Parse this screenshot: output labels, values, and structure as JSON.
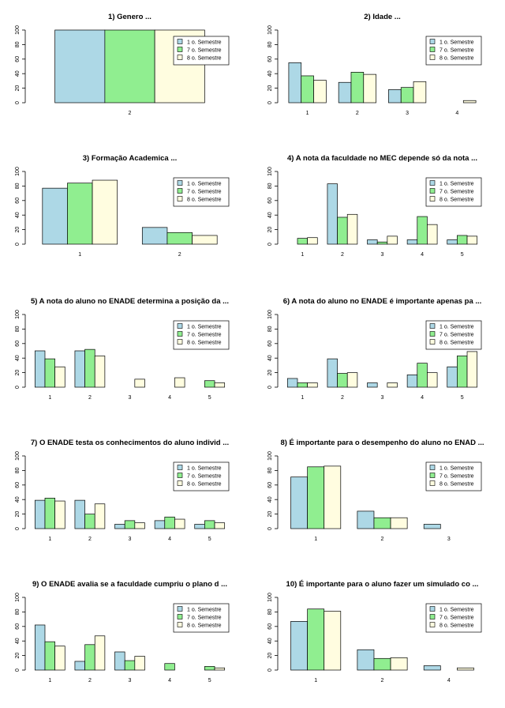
{
  "colors": [
    "#add8e6",
    "#90ee90",
    "#fffde0"
  ],
  "legend_labels": [
    "1 o. Semestre",
    "7 o. Semestre",
    "8 o. Semestre"
  ],
  "chart_data": [
    {
      "type": "bar",
      "title": "1) Genero ...",
      "categories": [
        "2"
      ],
      "ylim": [
        0,
        100
      ],
      "yticks": [
        0,
        20,
        40,
        60,
        80,
        100
      ],
      "series": [
        {
          "name": "1 o. Semestre",
          "values": [
            100
          ]
        },
        {
          "name": "7 o. Semestre",
          "values": [
            100
          ]
        },
        {
          "name": "8 o. Semestre",
          "values": [
            100
          ]
        }
      ],
      "legend": "top-right",
      "grid": false
    },
    {
      "type": "bar",
      "title": "2) Idade ...",
      "categories": [
        "1",
        "2",
        "3",
        "4"
      ],
      "ylim": [
        0,
        100
      ],
      "yticks": [
        0,
        20,
        40,
        60,
        80,
        100
      ],
      "series": [
        {
          "name": "1 o. Semestre",
          "values": [
            55,
            28,
            18,
            0
          ]
        },
        {
          "name": "7 o. Semestre",
          "values": [
            37,
            42,
            21,
            0
          ]
        },
        {
          "name": "8 o. Semestre",
          "values": [
            31,
            39,
            29,
            3
          ]
        }
      ],
      "legend": "top-right",
      "grid": false
    },
    {
      "type": "bar",
      "title": "3) Formação Academica ...",
      "categories": [
        "1",
        "2"
      ],
      "ylim": [
        0,
        100
      ],
      "yticks": [
        0,
        20,
        40,
        60,
        80,
        100
      ],
      "series": [
        {
          "name": "1 o. Semestre",
          "values": [
            77,
            23
          ]
        },
        {
          "name": "7 o. Semestre",
          "values": [
            84,
            16
          ]
        },
        {
          "name": "8 o. Semestre",
          "values": [
            88,
            12
          ]
        }
      ],
      "legend": "top-right",
      "grid": false
    },
    {
      "type": "bar",
      "title": "4) A nota da faculdade no MEC depende  só da nota  ...",
      "categories": [
        "1",
        "2",
        "3",
        "4",
        "5"
      ],
      "ylim": [
        0,
        100
      ],
      "yticks": [
        0,
        20,
        40,
        60,
        80,
        100
      ],
      "series": [
        {
          "name": "1 o. Semestre",
          "values": [
            0,
            83,
            6,
            6,
            6
          ]
        },
        {
          "name": "7 o. Semestre",
          "values": [
            8,
            37,
            3,
            38,
            12
          ]
        },
        {
          "name": "8 o. Semestre",
          "values": [
            9,
            41,
            11,
            27,
            11
          ]
        }
      ],
      "legend": "top-right",
      "grid": false
    },
    {
      "type": "bar",
      "title": "5) A nota do aluno no ENADE determina a posição da ...",
      "categories": [
        "1",
        "2",
        "3",
        "4",
        "5"
      ],
      "ylim": [
        0,
        100
      ],
      "yticks": [
        0,
        20,
        40,
        60,
        80,
        100
      ],
      "series": [
        {
          "name": "1 o. Semestre",
          "values": [
            50,
            50,
            0,
            0,
            0
          ]
        },
        {
          "name": "7 o. Semestre",
          "values": [
            39,
            52,
            0,
            0,
            9
          ]
        },
        {
          "name": "8 o. Semestre",
          "values": [
            28,
            43,
            11,
            13,
            6
          ]
        }
      ],
      "legend": "top-right",
      "grid": false
    },
    {
      "type": "bar",
      "title": "6) A nota do aluno no ENADE é importante apenas pa ...",
      "categories": [
        "1",
        "2",
        "3",
        "4",
        "5"
      ],
      "ylim": [
        0,
        100
      ],
      "yticks": [
        0,
        20,
        40,
        60,
        80,
        100
      ],
      "series": [
        {
          "name": "1 o. Semestre",
          "values": [
            12,
            39,
            6,
            17,
            28
          ]
        },
        {
          "name": "7 o. Semestre",
          "values": [
            6,
            19,
            0,
            33,
            43
          ]
        },
        {
          "name": "8 o. Semestre",
          "values": [
            6,
            20,
            6,
            20,
            49
          ]
        }
      ],
      "legend": "top-right",
      "grid": false
    },
    {
      "type": "bar",
      "title": "7) O ENADE testa os conhecimentos do aluno individ ...",
      "categories": [
        "1",
        "2",
        "3",
        "4",
        "5"
      ],
      "ylim": [
        0,
        100
      ],
      "yticks": [
        0,
        20,
        40,
        60,
        80,
        100
      ],
      "series": [
        {
          "name": "1 o. Semestre",
          "values": [
            39,
            39,
            6,
            11,
            6
          ]
        },
        {
          "name": "7 o. Semestre",
          "values": [
            42,
            20,
            11,
            16,
            11
          ]
        },
        {
          "name": "8 o. Semestre",
          "values": [
            38,
            34,
            8,
            13,
            8
          ]
        }
      ],
      "legend": "top-right",
      "grid": false
    },
    {
      "type": "bar",
      "title": "8) É importante para o desempenho do aluno no ENAD ...",
      "categories": [
        "1",
        "2",
        "3"
      ],
      "ylim": [
        0,
        100
      ],
      "yticks": [
        0,
        20,
        40,
        60,
        80,
        100
      ],
      "series": [
        {
          "name": "1 o. Semestre",
          "values": [
            71,
            24,
            6
          ]
        },
        {
          "name": "7 o. Semestre",
          "values": [
            85,
            15,
            0
          ]
        },
        {
          "name": "8 o. Semestre",
          "values": [
            86,
            15,
            0
          ]
        }
      ],
      "legend": "top-right",
      "grid": false
    },
    {
      "type": "bar",
      "title": "9) O ENADE avalia se a faculdade cumpriu o plano d ...",
      "categories": [
        "1",
        "2",
        "3",
        "4",
        "5"
      ],
      "ylim": [
        0,
        100
      ],
      "yticks": [
        0,
        20,
        40,
        60,
        80,
        100
      ],
      "series": [
        {
          "name": "1 o. Semestre",
          "values": [
            62,
            12,
            25,
            0,
            0
          ]
        },
        {
          "name": "7 o. Semestre",
          "values": [
            39,
            35,
            13,
            9,
            5
          ]
        },
        {
          "name": "8 o. Semestre",
          "values": [
            33,
            47,
            19,
            0,
            3
          ]
        }
      ],
      "legend": "top-right",
      "grid": false
    },
    {
      "type": "bar",
      "title": "10) É importante para o aluno fazer um simulado co ...",
      "categories": [
        "1",
        "2",
        "4"
      ],
      "ylim": [
        0,
        100
      ],
      "yticks": [
        0,
        20,
        40,
        60,
        80,
        100
      ],
      "series": [
        {
          "name": "1 o. Semestre",
          "values": [
            67,
            28,
            6
          ]
        },
        {
          "name": "7 o. Semestre",
          "values": [
            84,
            16,
            0
          ]
        },
        {
          "name": "8 o. Semestre",
          "values": [
            81,
            17,
            3
          ]
        }
      ],
      "legend": "top-right",
      "grid": false
    }
  ]
}
